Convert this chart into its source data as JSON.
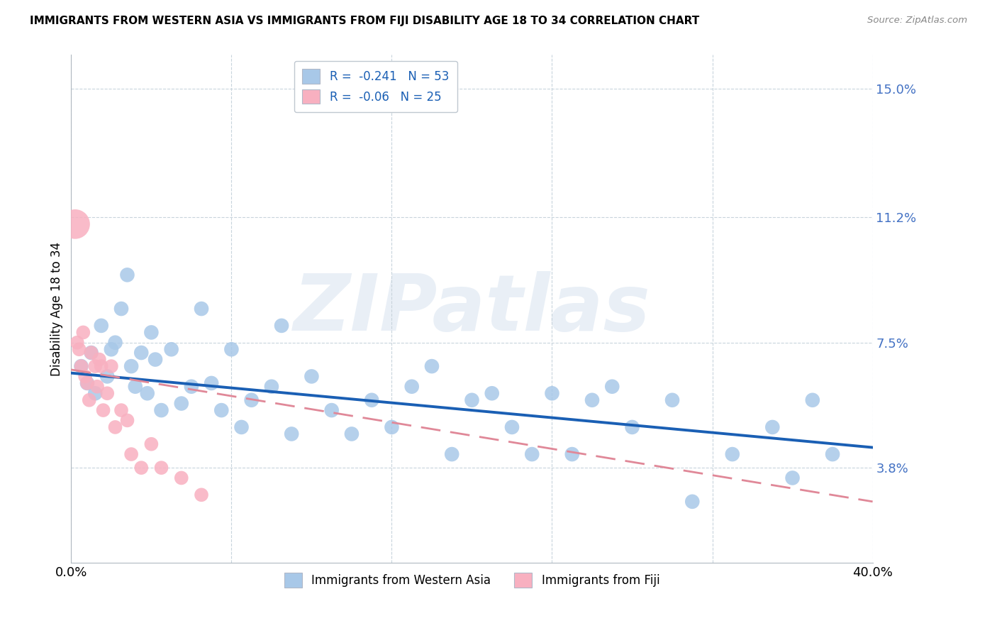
{
  "title": "IMMIGRANTS FROM WESTERN ASIA VS IMMIGRANTS FROM FIJI DISABILITY AGE 18 TO 34 CORRELATION CHART",
  "source": "Source: ZipAtlas.com",
  "ylabel": "Disability Age 18 to 34",
  "xlim": [
    0.0,
    0.4
  ],
  "ylim": [
    0.01,
    0.16
  ],
  "yticks": [
    0.038,
    0.075,
    0.112,
    0.15
  ],
  "ytick_labels": [
    "3.8%",
    "7.5%",
    "11.2%",
    "15.0%"
  ],
  "xticks": [
    0.0,
    0.08,
    0.16,
    0.24,
    0.32,
    0.4
  ],
  "xtick_labels": [
    "0.0%",
    "",
    "",
    "",
    "",
    "40.0%"
  ],
  "R_western": -0.241,
  "N_western": 53,
  "R_fiji": -0.06,
  "N_fiji": 25,
  "blue_color": "#a8c8e8",
  "pink_color": "#f8b0c0",
  "blue_line_color": "#1a5fb4",
  "pink_line_color": "#e08898",
  "legend_label_western": "Immigrants from Western Asia",
  "legend_label_fiji": "Immigrants from Fiji",
  "watermark": "ZIPatlas",
  "wa_line_x0": 0.0,
  "wa_line_y0": 0.066,
  "wa_line_x1": 0.4,
  "wa_line_y1": 0.044,
  "fiji_line_x0": 0.0,
  "fiji_line_y0": 0.067,
  "fiji_line_x1": 0.4,
  "fiji_line_y1": 0.028,
  "western_asia_x": [
    0.005,
    0.008,
    0.01,
    0.012,
    0.015,
    0.018,
    0.02,
    0.022,
    0.025,
    0.028,
    0.03,
    0.032,
    0.035,
    0.038,
    0.04,
    0.042,
    0.045,
    0.05,
    0.055,
    0.06,
    0.065,
    0.07,
    0.075,
    0.08,
    0.085,
    0.09,
    0.1,
    0.105,
    0.11,
    0.12,
    0.13,
    0.14,
    0.15,
    0.16,
    0.17,
    0.18,
    0.19,
    0.2,
    0.21,
    0.22,
    0.23,
    0.24,
    0.25,
    0.26,
    0.27,
    0.28,
    0.3,
    0.31,
    0.33,
    0.35,
    0.36,
    0.37,
    0.38
  ],
  "western_asia_y": [
    0.068,
    0.063,
    0.072,
    0.06,
    0.08,
    0.065,
    0.073,
    0.075,
    0.085,
    0.095,
    0.068,
    0.062,
    0.072,
    0.06,
    0.078,
    0.07,
    0.055,
    0.073,
    0.057,
    0.062,
    0.085,
    0.063,
    0.055,
    0.073,
    0.05,
    0.058,
    0.062,
    0.08,
    0.048,
    0.065,
    0.055,
    0.048,
    0.058,
    0.05,
    0.062,
    0.068,
    0.042,
    0.058,
    0.06,
    0.05,
    0.042,
    0.06,
    0.042,
    0.058,
    0.062,
    0.05,
    0.058,
    0.028,
    0.042,
    0.05,
    0.035,
    0.058,
    0.042
  ],
  "fiji_x": [
    0.002,
    0.003,
    0.004,
    0.005,
    0.006,
    0.007,
    0.008,
    0.009,
    0.01,
    0.012,
    0.013,
    0.014,
    0.015,
    0.016,
    0.018,
    0.02,
    0.022,
    0.025,
    0.028,
    0.03,
    0.035,
    0.04,
    0.045,
    0.055,
    0.065
  ],
  "fiji_y": [
    0.11,
    0.075,
    0.073,
    0.068,
    0.078,
    0.065,
    0.063,
    0.058,
    0.072,
    0.068,
    0.062,
    0.07,
    0.068,
    0.055,
    0.06,
    0.068,
    0.05,
    0.055,
    0.052,
    0.042,
    0.038,
    0.045,
    0.038,
    0.035,
    0.03
  ],
  "fiji_large_idx": 0
}
